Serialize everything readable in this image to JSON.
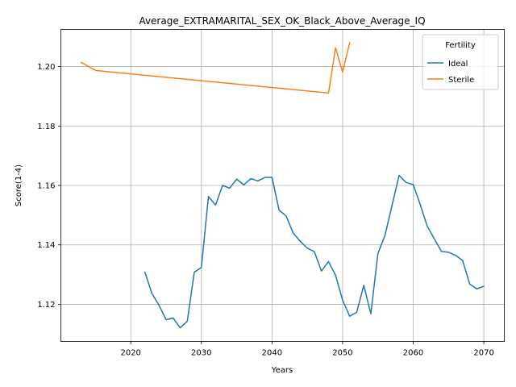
{
  "chart_data": {
    "type": "line",
    "title": "Average_EXTRAMARITAL_SEX_OK_Black_Above_Average_IQ",
    "xlabel": "Years",
    "ylabel": "Score(1-4)",
    "xlim": [
      2010.1,
      2072.9
    ],
    "ylim": [
      1.1075,
      1.2125
    ],
    "xticks": [
      2020,
      2030,
      2040,
      2050,
      2060,
      2070
    ],
    "yticks": [
      1.12,
      1.14,
      1.16,
      1.18,
      1.2
    ],
    "ytick_labels": [
      "1.12",
      "1.14",
      "1.16",
      "1.18",
      "1.20"
    ],
    "grid": true,
    "legend": {
      "title": "Fertility",
      "placement": "upper right"
    },
    "series": [
      {
        "name": "Ideal",
        "color": "#1f77b4",
        "x": [
          2022,
          2023,
          2024,
          2025,
          2026,
          2027,
          2028,
          2029,
          2030,
          2031,
          2032,
          2033,
          2034,
          2035,
          2036,
          2037,
          2038,
          2039,
          2040,
          2041,
          2042,
          2043,
          2044,
          2045,
          2046,
          2047,
          2048,
          2049,
          2050,
          2051,
          2052,
          2053,
          2054,
          2055,
          2056,
          2057,
          2058,
          2059,
          2060,
          2061,
          2062,
          2063,
          2064,
          2065,
          2066,
          2067,
          2068,
          2069,
          2070
        ],
        "y": [
          1.1308,
          1.1236,
          1.1197,
          1.1148,
          1.1154,
          1.1121,
          1.1143,
          1.1308,
          1.1324,
          1.1563,
          1.1534,
          1.16,
          1.1591,
          1.1621,
          1.1602,
          1.1623,
          1.1615,
          1.1627,
          1.1627,
          1.1517,
          1.1497,
          1.144,
          1.1412,
          1.1389,
          1.1377,
          1.1312,
          1.1344,
          1.1298,
          1.1214,
          1.116,
          1.1173,
          1.1264,
          1.1168,
          1.1371,
          1.1432,
          1.1533,
          1.1634,
          1.161,
          1.1603,
          1.1535,
          1.1462,
          1.142,
          1.1378,
          1.1375,
          1.1365,
          1.1347,
          1.1268,
          1.1252,
          1.1261
        ]
      },
      {
        "name": "Sterile",
        "color": "#ff7f0e",
        "x": [
          2013,
          2015,
          2048,
          2049,
          2050,
          2051
        ],
        "y": [
          1.2014,
          1.1987,
          1.1911,
          1.2063,
          1.1981,
          1.208
        ]
      }
    ]
  }
}
